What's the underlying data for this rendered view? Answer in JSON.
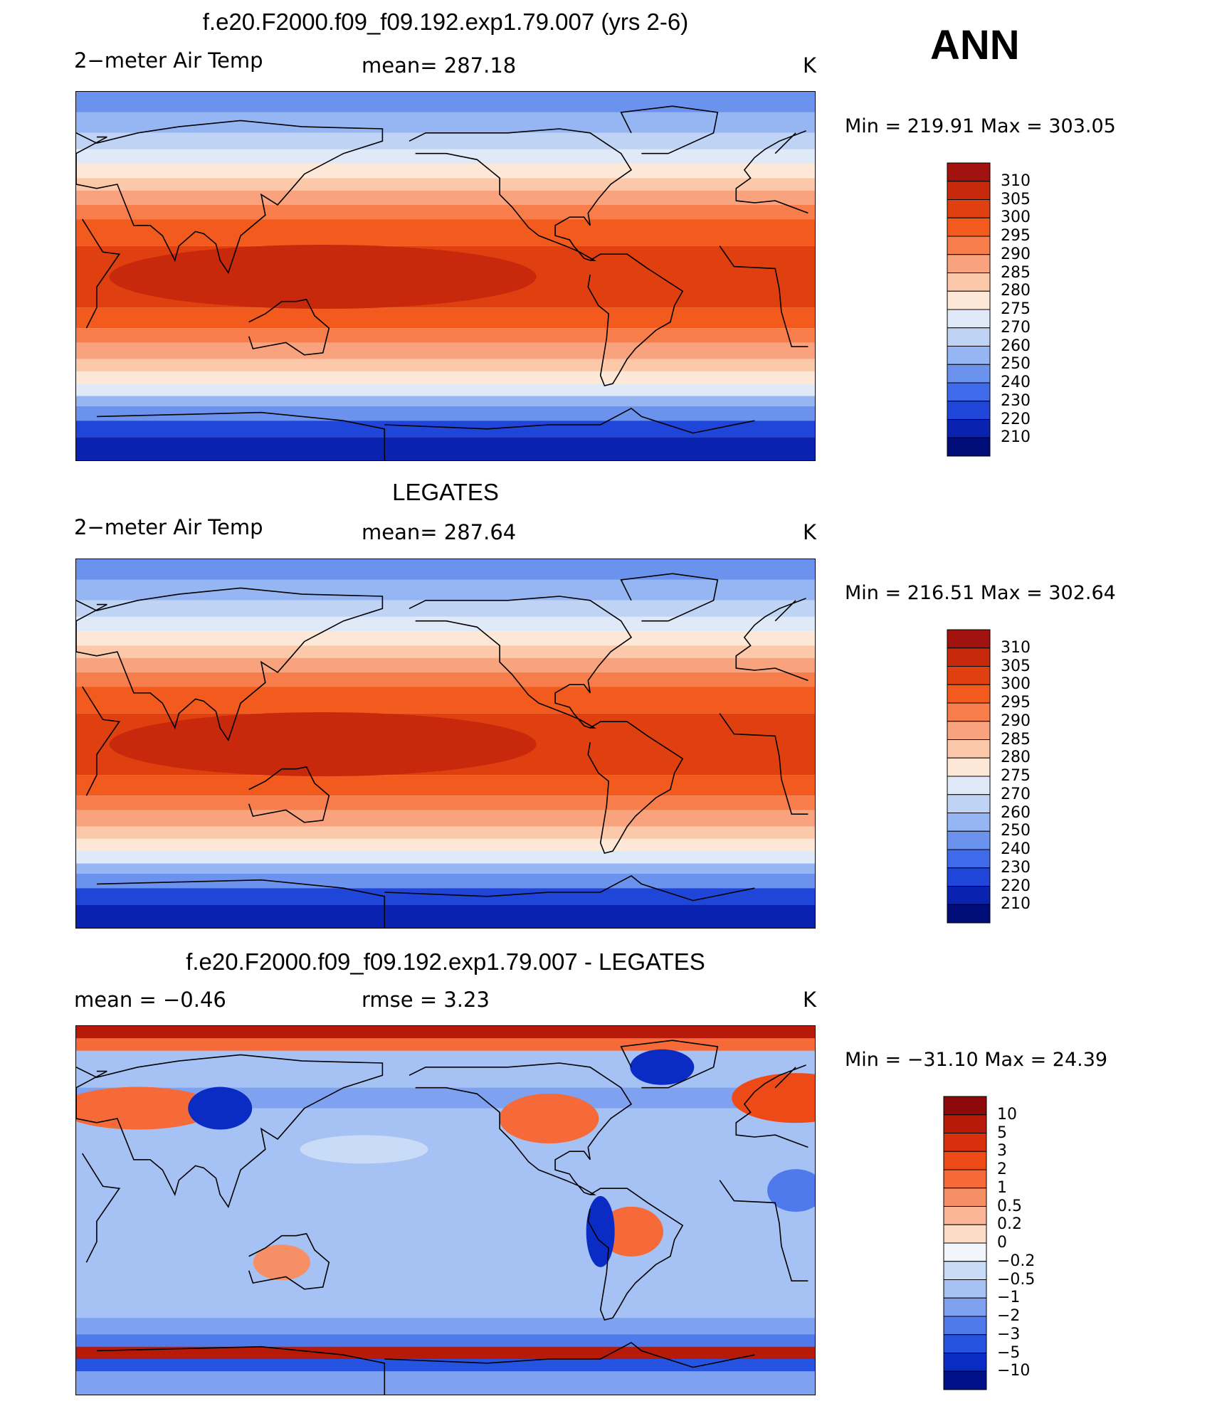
{
  "season": "ANN",
  "panels": [
    {
      "title": "f.e20.F2000.f09_f09.192.exp1.79.007 (yrs 2-6)",
      "left_label": "2−meter Air Temp",
      "center_label": "mean=  287.18",
      "units": "K",
      "minmax": "Min  =  219.91  Max  =  303.05",
      "colorbar": {
        "levels": [
          "310",
          "305",
          "300",
          "295",
          "290",
          "285",
          "280",
          "275",
          "270",
          "260",
          "250",
          "240",
          "230",
          "220",
          "210"
        ],
        "colors": [
          "#a2130f",
          "#c8280c",
          "#e0400f",
          "#f25a1e",
          "#f77d4a",
          "#f9a37e",
          "#fcc8aa",
          "#fde7d6",
          "#dfe9f7",
          "#bfd4f5",
          "#95b6f2",
          "#6b93ee",
          "#3f6bea",
          "#1f45d9",
          "#0a22b0",
          "#000d78"
        ]
      },
      "map_kind": "temperature"
    },
    {
      "title": "LEGATES",
      "left_label": "2−meter Air Temp",
      "center_label": "mean=  287.64",
      "units": "K",
      "minmax": "Min  =  216.51  Max  =  302.64",
      "colorbar": {
        "levels": [
          "310",
          "305",
          "300",
          "295",
          "290",
          "285",
          "280",
          "275",
          "270",
          "260",
          "250",
          "240",
          "230",
          "220",
          "210"
        ],
        "colors": [
          "#a2130f",
          "#c8280c",
          "#e0400f",
          "#f25a1e",
          "#f77d4a",
          "#f9a37e",
          "#fcc8aa",
          "#fde7d6",
          "#dfe9f7",
          "#bfd4f5",
          "#95b6f2",
          "#6b93ee",
          "#3f6bea",
          "#1f45d9",
          "#0a22b0",
          "#000d78"
        ]
      },
      "map_kind": "temperature"
    },
    {
      "title": "f.e20.F2000.f09_f09.192.exp1.79.007 - LEGATES",
      "left_label": "mean  =     −0.46",
      "center_label": "rmse  =      3.23",
      "units": "K",
      "minmax": "Min  =  −31.10  Max  =     24.39",
      "colorbar": {
        "levels": [
          "10",
          "5",
          "3",
          "2",
          "1",
          "0.5",
          "0.2",
          "0",
          "−0.2",
          "−0.5",
          "−1",
          "−2",
          "−3",
          "−5",
          "−10"
        ],
        "colors": [
          "#8c0a0a",
          "#b81a0a",
          "#d8300c",
          "#ee4a18",
          "#f56a38",
          "#f78f66",
          "#f9b596",
          "#fcdcc6",
          "#f2f6fc",
          "#c8dbf7",
          "#a6c2f4",
          "#7fa2f0",
          "#4f7aeb",
          "#2653e0",
          "#0b2cc4",
          "#00118a"
        ]
      },
      "map_kind": "difference"
    }
  ]
}
